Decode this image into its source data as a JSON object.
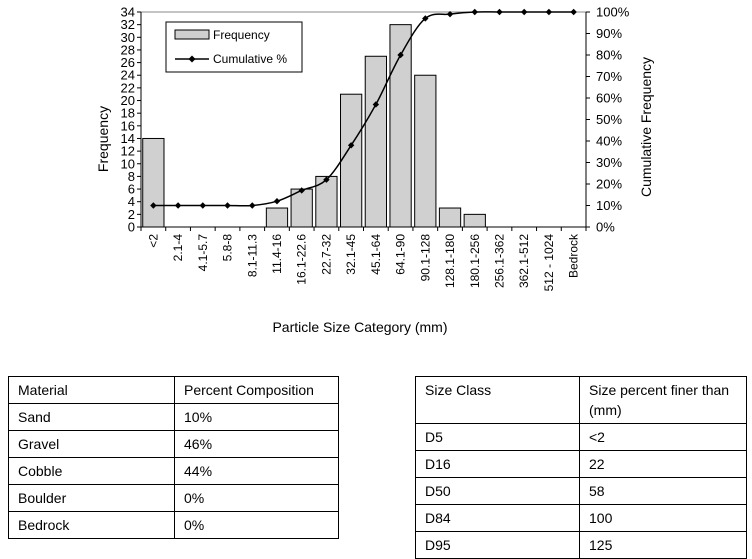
{
  "chart_data": {
    "type": "bar",
    "xlabel": "Particle Size Category (mm)",
    "ylabel": "Frequency",
    "y2label": "Cumulative Frequency",
    "ylim": [
      0,
      34
    ],
    "y2lim": [
      0,
      100
    ],
    "yticks": [
      0,
      2,
      4,
      6,
      8,
      10,
      12,
      14,
      16,
      18,
      20,
      22,
      24,
      26,
      28,
      30,
      32,
      34
    ],
    "y2ticks": [
      "0%",
      "10%",
      "20%",
      "30%",
      "40%",
      "50%",
      "60%",
      "70%",
      "80%",
      "90%",
      "100%"
    ],
    "legend_position": "top-left",
    "categories": [
      "<2",
      "2.1-4",
      "4.1-5.7",
      "5.8-8",
      "8.1-11.3",
      "11.4-16",
      "16.1-22.6",
      "22.7-32",
      "32.1-45",
      "45.1-64",
      "64.1-90",
      "90.1-128",
      "128.1-180",
      "180.1-256",
      "256.1-362",
      "362.1-512",
      "512 - 1024",
      "Bedrock"
    ],
    "series": [
      {
        "name": "Frequency",
        "kind": "bar",
        "color": "#d0d0d0",
        "values": [
          14,
          0,
          0,
          0,
          0,
          3,
          6,
          8,
          21,
          27,
          32,
          24,
          3,
          2,
          0,
          0,
          0,
          0
        ]
      },
      {
        "name": "Cumulative %",
        "kind": "line",
        "axis": "right",
        "color": "#000000",
        "values": [
          10,
          10,
          10,
          10,
          10,
          12,
          17,
          22,
          38,
          57,
          80,
          97,
          99,
          100,
          100,
          100,
          100,
          100
        ]
      }
    ]
  },
  "material_table": {
    "headers": [
      "Material",
      "Percent Composition"
    ],
    "rows": [
      [
        "Sand",
        "10%"
      ],
      [
        "Gravel",
        "46%"
      ],
      [
        "Cobble",
        "44%"
      ],
      [
        "Boulder",
        "0%"
      ],
      [
        "Bedrock",
        "0%"
      ]
    ]
  },
  "size_table": {
    "headers": [
      "Size Class",
      "Size percent  finer than (mm)"
    ],
    "rows": [
      [
        "D5",
        "<2"
      ],
      [
        "D16",
        "22"
      ],
      [
        "D50",
        "58"
      ],
      [
        "D84",
        "100"
      ],
      [
        "D95",
        "125"
      ]
    ]
  }
}
